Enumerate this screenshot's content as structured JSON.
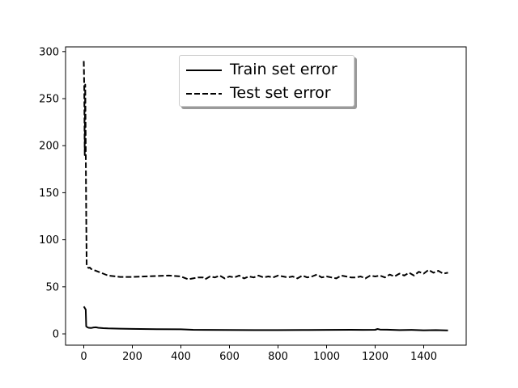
{
  "chart_data": {
    "type": "line",
    "xlim": [
      -75,
      1575
    ],
    "ylim": [
      -12,
      305
    ],
    "xticks": [
      0,
      200,
      400,
      600,
      800,
      1000,
      1200,
      1400
    ],
    "yticks": [
      0,
      50,
      100,
      150,
      200,
      250,
      300
    ],
    "legend": "upper center",
    "grid": false,
    "series": [
      {
        "name": "Train set error",
        "style": "solid",
        "color": "#000000",
        "x": [
          0,
          3,
          5,
          8,
          10,
          15,
          20,
          30,
          40,
          50,
          60,
          80,
          100,
          150,
          200,
          300,
          400,
          450,
          500,
          600,
          700,
          800,
          900,
          1000,
          1100,
          1150,
          1200,
          1210,
          1220,
          1250,
          1300,
          1350,
          1400,
          1450,
          1500
        ],
        "y": [
          29,
          28,
          27,
          26,
          8,
          7,
          6.5,
          6.2,
          6.8,
          7,
          6.5,
          6,
          5.8,
          5.5,
          5.3,
          5,
          4.8,
          4.3,
          4.2,
          4.1,
          4,
          4,
          4.1,
          4.2,
          4.3,
          4.2,
          4.3,
          5.2,
          4.6,
          4.4,
          4,
          4.2,
          3.8,
          4,
          3.6
        ]
      },
      {
        "name": "Test set error",
        "style": "dashed",
        "color": "#000000",
        "x": [
          0,
          2,
          4,
          6,
          8,
          10,
          12,
          15,
          20,
          25,
          30,
          40,
          60,
          80,
          100,
          150,
          200,
          250,
          300,
          350,
          400,
          430,
          450,
          470,
          490,
          500,
          520,
          540,
          560,
          580,
          600,
          620,
          640,
          660,
          680,
          700,
          720,
          740,
          760,
          780,
          800,
          820,
          840,
          860,
          880,
          900,
          920,
          940,
          960,
          980,
          1000,
          1020,
          1040,
          1060,
          1080,
          1100,
          1120,
          1140,
          1160,
          1180,
          1200,
          1220,
          1240,
          1260,
          1280,
          1300,
          1320,
          1340,
          1360,
          1380,
          1400,
          1420,
          1440,
          1460,
          1480,
          1500
        ],
        "y": [
          290,
          262,
          190,
          265,
          200,
          128,
          72,
          71,
          70,
          70.5,
          69,
          68,
          66,
          64,
          62,
          60.5,
          60.5,
          61,
          61.5,
          62,
          61,
          58,
          59,
          60,
          60,
          58,
          61,
          60,
          62,
          59,
          61,
          60,
          62,
          59,
          61,
          60,
          62,
          60,
          61,
          60,
          62,
          61,
          60,
          61,
          59,
          62,
          60,
          61,
          63,
          60,
          61,
          60,
          59,
          62,
          61,
          60,
          60,
          61,
          59,
          62,
          61,
          62,
          60,
          63,
          61,
          64,
          62,
          65,
          62,
          66,
          64,
          68,
          65,
          67,
          64,
          65
        ]
      }
    ]
  }
}
